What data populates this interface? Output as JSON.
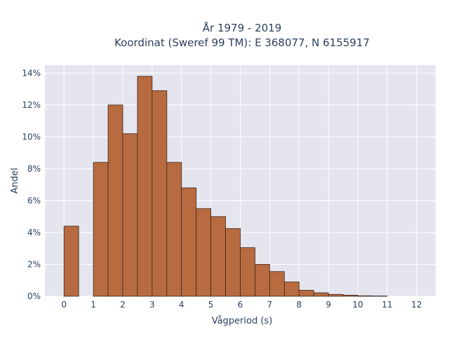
{
  "chart_data": {
    "type": "bar",
    "title": [
      "År 1979 - 2019",
      "Koordinat (Sweref 99 TM): E 368077, N 6155917"
    ],
    "xlabel": "Vågperiod (s)",
    "ylabel": "Andel",
    "xlim": [
      -0.65,
      12.65
    ],
    "ylim": [
      0,
      14.5
    ],
    "bin_width": 0.5,
    "x_ticks": [
      0,
      1,
      2,
      3,
      4,
      5,
      6,
      7,
      8,
      9,
      10,
      11,
      12
    ],
    "y_ticks": [
      0,
      2,
      4,
      6,
      8,
      10,
      12,
      14
    ],
    "y_tick_suffix": "%",
    "grid": true,
    "legend": "none",
    "plot_background": "#e5e5ef",
    "bar_color": "#b86b40",
    "bar_edge_color": "#3b2618",
    "bins": [
      {
        "x0": 0.0,
        "value": 4.4
      },
      {
        "x0": 1.0,
        "value": 8.4
      },
      {
        "x0": 1.5,
        "value": 12.0
      },
      {
        "x0": 2.0,
        "value": 10.2
      },
      {
        "x0": 2.5,
        "value": 13.8
      },
      {
        "x0": 3.0,
        "value": 12.9
      },
      {
        "x0": 3.5,
        "value": 8.4
      },
      {
        "x0": 4.0,
        "value": 6.8
      },
      {
        "x0": 4.5,
        "value": 5.5
      },
      {
        "x0": 5.0,
        "value": 5.0
      },
      {
        "x0": 5.5,
        "value": 4.25
      },
      {
        "x0": 6.0,
        "value": 3.05
      },
      {
        "x0": 6.5,
        "value": 2.0
      },
      {
        "x0": 7.0,
        "value": 1.55
      },
      {
        "x0": 7.5,
        "value": 0.9
      },
      {
        "x0": 8.0,
        "value": 0.38
      },
      {
        "x0": 8.5,
        "value": 0.22
      },
      {
        "x0": 9.0,
        "value": 0.12
      },
      {
        "x0": 9.5,
        "value": 0.07
      },
      {
        "x0": 10.0,
        "value": 0.03
      },
      {
        "x0": 10.5,
        "value": 0.02
      }
    ]
  }
}
